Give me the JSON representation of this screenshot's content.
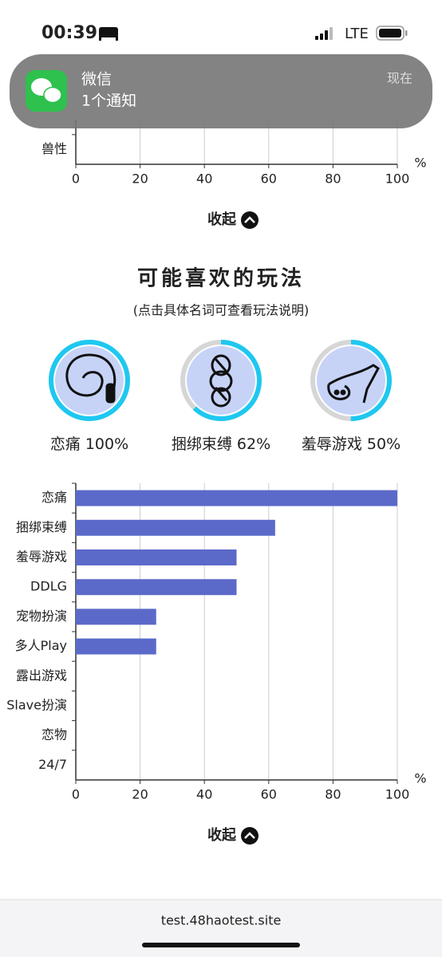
{
  "status_bar": {
    "time": "00:39",
    "network": "LTE"
  },
  "notification": {
    "app": "微信",
    "message": "1个通知",
    "time": "现在"
  },
  "chart_data": [
    {
      "type": "bar",
      "orientation": "horizontal",
      "categories": [
        "兽性"
      ],
      "values": [
        0
      ],
      "color": "#5b6ac9",
      "xlim": [
        0,
        100
      ],
      "xticks": [
        0,
        20,
        40,
        60,
        80,
        100
      ],
      "x_unit": "%",
      "grid": true
    },
    {
      "type": "bar",
      "orientation": "horizontal",
      "categories": [
        "恋痛",
        "捆绑束缚",
        "羞辱游戏",
        "DDLG",
        "宠物扮演",
        "多人Play",
        "露出游戏",
        "Slave扮演",
        "恋物",
        "24/7"
      ],
      "values": [
        100,
        62,
        50,
        50,
        25,
        25,
        0,
        0,
        0,
        0
      ],
      "color": "#5b6ac9",
      "xlim": [
        0,
        100
      ],
      "xticks": [
        0,
        20,
        40,
        60,
        80,
        100
      ],
      "x_unit": "%",
      "grid": true
    }
  ],
  "collapse_labels": [
    "收起",
    "收起"
  ],
  "section": {
    "title": "可能喜欢的玩法",
    "subtitle": "(点击具体名词可查看玩法说明)"
  },
  "favorites": {
    "names": [
      "恋痛",
      "捆绑束缚",
      "羞辱游戏"
    ],
    "values": [
      100,
      62,
      50
    ],
    "value_labels": [
      "100%",
      "62%",
      "50%"
    ],
    "ring_color": "#1ec8f0"
  },
  "footer": {
    "url": "test.48haotest.site"
  }
}
